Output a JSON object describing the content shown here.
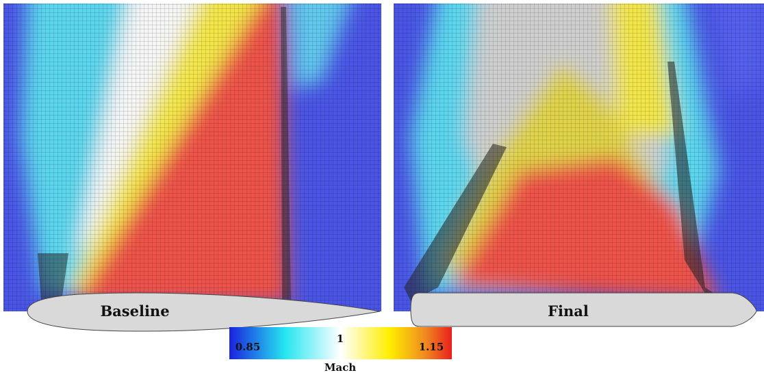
{
  "panels": [
    {
      "label": "Baseline"
    },
    {
      "label": "Final"
    }
  ],
  "colorbar": {
    "ticks": [
      0.85,
      1,
      1.15
    ],
    "label": "Mach"
  }
}
